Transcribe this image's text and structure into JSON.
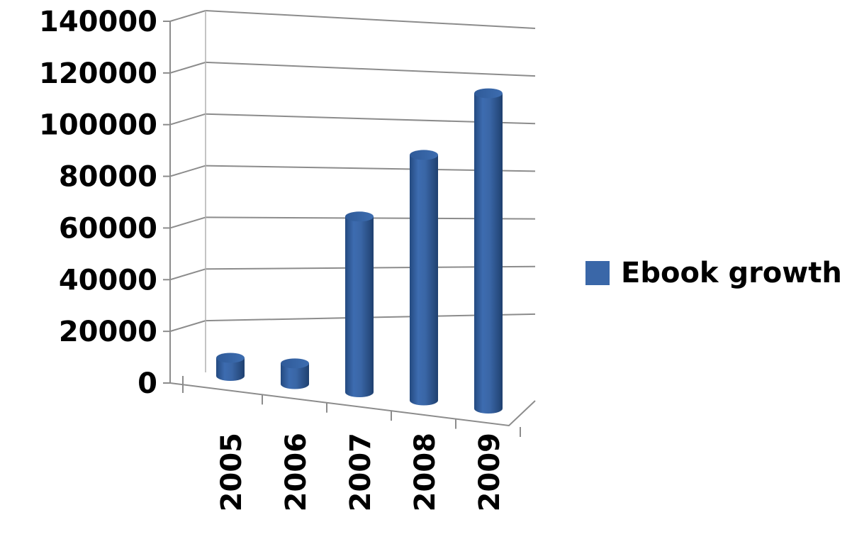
{
  "chart_data": {
    "type": "bar",
    "style": "3d-cylinder",
    "categories": [
      "2005",
      "2006",
      "2007",
      "2008",
      "2009"
    ],
    "series": [
      {
        "name": "Ebook growth",
        "values": [
          7000,
          8000,
          68000,
          95000,
          122000
        ],
        "color": "#3a67a8"
      }
    ],
    "ylim": [
      0,
      140000
    ],
    "y_ticks": [
      "0",
      "20000",
      "40000",
      "60000",
      "80000",
      "100000",
      "120000",
      "140000"
    ],
    "grid": true,
    "legend_position": "right",
    "title": "",
    "xlabel": "",
    "ylabel": ""
  },
  "legend": {
    "label": "Ebook growth"
  }
}
